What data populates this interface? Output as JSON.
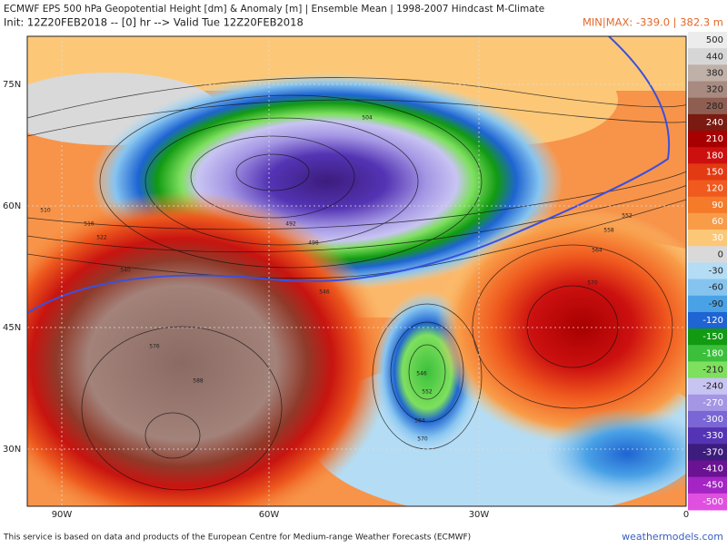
{
  "header": {
    "title": "ECMWF EPS 500 hPa Geopotential Height [dm] & Anomaly [m] | Ensemble Mean | 1998-2007 Hindcast M-Climate",
    "init": "Init: 12Z20FEB2018 -- [0] hr --> Valid Tue 12Z20FEB2018",
    "minmax": "MIN|MAX: -339.0 | 382.3 m"
  },
  "map": {
    "lat_labels": [
      "75N",
      "60N",
      "45N",
      "30N"
    ],
    "lon_labels": [
      "90W",
      "60W",
      "30W",
      "0"
    ],
    "contour_labels": [
      "510",
      "516",
      "522",
      "540",
      "492",
      "498",
      "504",
      "546",
      "552",
      "558",
      "564",
      "570",
      "576",
      "588",
      "546",
      "552",
      "564",
      "570"
    ]
  },
  "colorbar": {
    "labels": [
      500,
      440,
      380,
      320,
      280,
      240,
      210,
      180,
      150,
      120,
      90,
      60,
      30,
      0,
      -30,
      -60,
      -90,
      -120,
      -150,
      -180,
      -210,
      -240,
      -270,
      -300,
      -330,
      -370,
      -410,
      -450,
      -500
    ],
    "colors": [
      "#ececec",
      "#d6d6d6",
      "#bfb0a8",
      "#a88a80",
      "#8f5e52",
      "#7a1a10",
      "#a80000",
      "#cc1010",
      "#e23a12",
      "#f05a1e",
      "#f57a2a",
      "#f89c48",
      "#fcc878",
      "#d9d9d9",
      "#b4dcf4",
      "#86c4f0",
      "#4aa2e6",
      "#1e64d2",
      "#129a12",
      "#3cc03c",
      "#7ee05e",
      "#c8c4f2",
      "#a496e4",
      "#7a66d4",
      "#5434b4",
      "#3c1c7c",
      "#6a1292",
      "#a424c4",
      "#e050e0"
    ]
  },
  "footer": {
    "credit": "This service is based on data and products of the European Centre for Medium-range Weather Forecasts (ECMWF)",
    "site": "weathermodels.com"
  }
}
